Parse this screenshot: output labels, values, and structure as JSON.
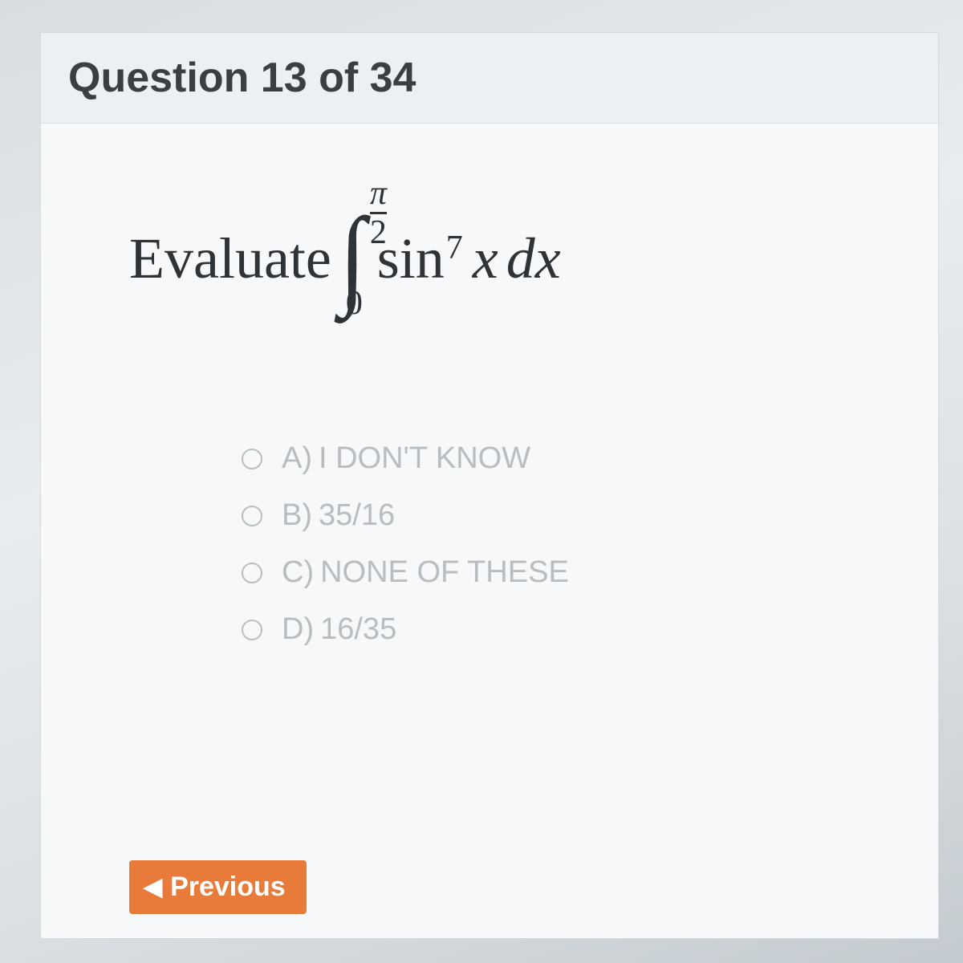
{
  "header": {
    "title": "Question 13 of 34"
  },
  "question": {
    "lead": "Evaluate",
    "upper_pi": "π",
    "upper_den": "2",
    "lower": "0",
    "func": "sin",
    "power": "7",
    "var": "x",
    "diff": "dx"
  },
  "options": [
    {
      "letter": "A)",
      "text": "I DON'T KNOW"
    },
    {
      "letter": "B)",
      "text": "35/16"
    },
    {
      "letter": "C)",
      "text": "NONE OF THESE"
    },
    {
      "letter": "D)",
      "text": "16/35"
    }
  ],
  "footer": {
    "previous": "Previous"
  },
  "colors": {
    "card_bg": "#f6f8f9",
    "header_bg": "#edf0f2",
    "title_color": "#3a3f43",
    "option_color": "#b7bdc1",
    "btn_bg": "#e87a3a",
    "btn_text": "#ffffff"
  }
}
